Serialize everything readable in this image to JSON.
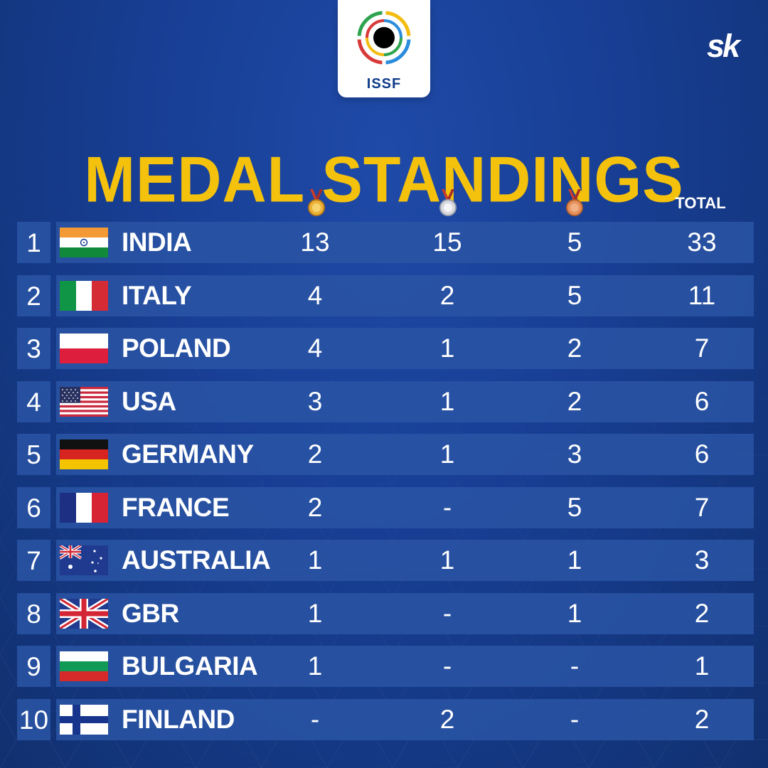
{
  "brand": {
    "logo_text": "ISSF",
    "watermark": "sk"
  },
  "title": "MEDAL STANDINGS",
  "header": {
    "gold_icon": "gold-medal-icon",
    "silver_icon": "silver-medal-icon",
    "bronze_icon": "bronze-medal-icon",
    "total_label": "TOTAL"
  },
  "rows": [
    {
      "rank": "1",
      "country": "INDIA",
      "gold": "13",
      "silver": "15",
      "bronze": "5",
      "total": "33",
      "flag": "india-flag-icon"
    },
    {
      "rank": "2",
      "country": "ITALY",
      "gold": "4",
      "silver": "2",
      "bronze": "5",
      "total": "11",
      "flag": "italy-flag-icon"
    },
    {
      "rank": "3",
      "country": "POLAND",
      "gold": "4",
      "silver": "1",
      "bronze": "2",
      "total": "7",
      "flag": "poland-flag-icon"
    },
    {
      "rank": "4",
      "country": "USA",
      "gold": "3",
      "silver": "1",
      "bronze": "2",
      "total": "6",
      "flag": "usa-flag-icon"
    },
    {
      "rank": "5",
      "country": "GERMANY",
      "gold": "2",
      "silver": "1",
      "bronze": "3",
      "total": "6",
      "flag": "germany-flag-icon"
    },
    {
      "rank": "6",
      "country": "FRANCE",
      "gold": "2",
      "silver": "-",
      "bronze": "5",
      "total": "7",
      "flag": "france-flag-icon"
    },
    {
      "rank": "7",
      "country": "AUSTRALIA",
      "gold": "1",
      "silver": "1",
      "bronze": "1",
      "total": "3",
      "flag": "australia-flag-icon"
    },
    {
      "rank": "8",
      "country": "GBR",
      "gold": "1",
      "silver": "-",
      "bronze": "1",
      "total": "2",
      "flag": "gbr-flag-icon"
    },
    {
      "rank": "9",
      "country": "BULGARIA",
      "gold": "1",
      "silver": "-",
      "bronze": "-",
      "total": "1",
      "flag": "bulgaria-flag-icon"
    },
    {
      "rank": "10",
      "country": "FINLAND",
      "gold": "-",
      "silver": "2",
      "bronze": "-",
      "total": "2",
      "flag": "finland-flag-icon"
    }
  ],
  "colors": {
    "background": "#173e93",
    "row": "#2a54a4",
    "title": "#f4c20d"
  }
}
